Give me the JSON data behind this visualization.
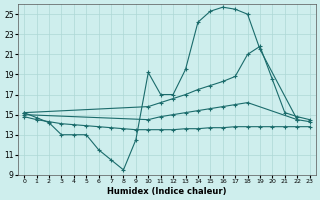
{
  "xlabel": "Humidex (Indice chaleur)",
  "bg_color": "#ceeeed",
  "grid_color": "#aed8d5",
  "line_color": "#1a6b6b",
  "xlim": [
    -0.5,
    23.5
  ],
  "ylim": [
    9,
    26
  ],
  "yticks": [
    9,
    11,
    13,
    15,
    17,
    19,
    21,
    23,
    25
  ],
  "xticks": [
    0,
    1,
    2,
    3,
    4,
    5,
    6,
    7,
    8,
    9,
    10,
    11,
    12,
    13,
    14,
    15,
    16,
    17,
    18,
    19,
    20,
    21,
    22,
    23
  ],
  "line1_x": [
    0,
    1,
    2,
    3,
    4,
    5,
    6,
    7,
    8,
    9,
    10,
    11,
    12,
    13,
    14,
    15,
    16,
    17,
    18,
    19,
    22
  ],
  "line1_y": [
    15.2,
    14.7,
    14.2,
    13.0,
    13.0,
    13.0,
    11.5,
    10.5,
    9.5,
    12.5,
    19.2,
    17.0,
    17.0,
    19.5,
    24.2,
    25.3,
    25.7,
    25.5,
    25.0,
    21.5,
    14.5
  ],
  "line2_x": [
    0,
    10,
    11,
    12,
    13,
    14,
    15,
    16,
    17,
    18,
    19,
    20,
    21,
    22,
    23
  ],
  "line2_y": [
    15.2,
    15.8,
    16.2,
    16.6,
    17.0,
    17.5,
    17.9,
    18.3,
    18.8,
    21.0,
    21.8,
    18.5,
    15.2,
    14.8,
    14.5
  ],
  "line3_x": [
    0,
    10,
    11,
    12,
    13,
    14,
    15,
    16,
    17,
    18,
    22,
    23
  ],
  "line3_y": [
    15.0,
    14.5,
    14.8,
    15.0,
    15.2,
    15.4,
    15.6,
    15.8,
    16.0,
    16.2,
    14.5,
    14.3
  ],
  "line4_x": [
    0,
    1,
    2,
    3,
    4,
    5,
    6,
    7,
    8,
    9,
    10,
    11,
    12,
    13,
    14,
    15,
    16,
    17,
    18,
    19,
    20,
    21,
    22,
    23
  ],
  "line4_y": [
    14.8,
    14.5,
    14.3,
    14.1,
    14.0,
    13.9,
    13.8,
    13.7,
    13.6,
    13.5,
    13.5,
    13.5,
    13.5,
    13.6,
    13.6,
    13.7,
    13.7,
    13.8,
    13.8,
    13.8,
    13.8,
    13.8,
    13.8,
    13.8
  ]
}
